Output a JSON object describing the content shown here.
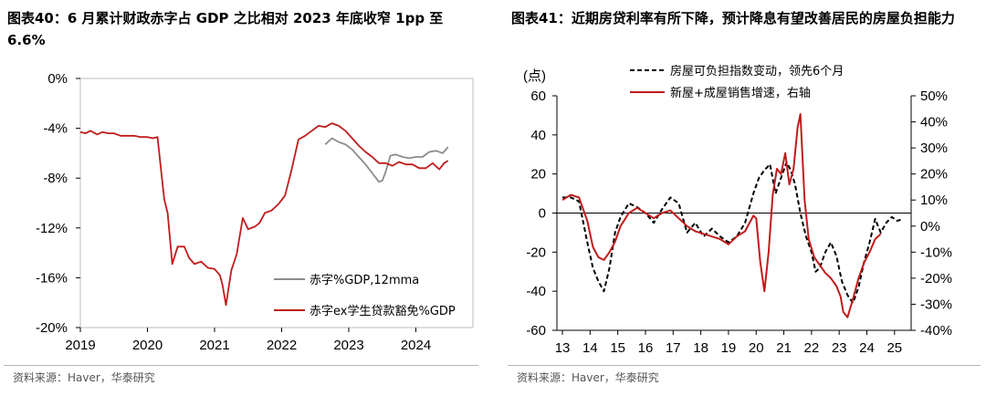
{
  "left": {
    "title": "图表40：6 月累计财政赤字占 GDP 之比相对 2023 年底收窄 1pp 至6.6%",
    "source": "资料来源：Haver，华泰研究",
    "chart_data": {
      "type": "line",
      "y_ticks": [
        "0%",
        "-4%",
        "-8%",
        "-12%",
        "-16%",
        "-20%"
      ],
      "x_ticks": [
        "2019",
        "2020",
        "2021",
        "2022",
        "2023",
        "2024"
      ],
      "ylim": [
        -20,
        0
      ],
      "xlim": [
        2019.0,
        2024.85
      ],
      "grid": false,
      "legend_position": "bottom-right",
      "series": [
        {
          "name": "赤字%GDP,12mma",
          "color": "#8c8c8c",
          "x": [
            2022.65,
            2022.75,
            2022.85,
            2022.95,
            2023.05,
            2023.15,
            2023.25,
            2023.35,
            2023.45,
            2023.5,
            2023.55,
            2023.62,
            2023.7,
            2023.8,
            2023.9,
            2024.0,
            2024.1,
            2024.2,
            2024.3,
            2024.4,
            2024.48
          ],
          "y": [
            -5.3,
            -4.8,
            -5.1,
            -5.3,
            -5.7,
            -6.3,
            -6.9,
            -7.6,
            -8.3,
            -8.2,
            -7.5,
            -6.2,
            -6.1,
            -6.3,
            -6.4,
            -6.3,
            -6.3,
            -5.9,
            -5.8,
            -6.0,
            -5.5
          ]
        },
        {
          "name": "赤字ex学生贷款豁免%GDP",
          "color": "#c01c1c",
          "x": [
            2019.0,
            2019.08,
            2019.15,
            2019.25,
            2019.33,
            2019.42,
            2019.5,
            2019.6,
            2019.7,
            2019.8,
            2019.9,
            2020.0,
            2020.08,
            2020.15,
            2020.25,
            2020.3,
            2020.37,
            2020.45,
            2020.55,
            2020.62,
            2020.7,
            2020.8,
            2020.9,
            2021.0,
            2021.08,
            2021.12,
            2021.17,
            2021.25,
            2021.33,
            2021.42,
            2021.5,
            2021.6,
            2021.67,
            2021.75,
            2021.85,
            2021.95,
            2022.05,
            2022.15,
            2022.25,
            2022.35,
            2022.45,
            2022.55,
            2022.65,
            2022.75,
            2022.85,
            2022.95,
            2023.05,
            2023.15,
            2023.25,
            2023.35,
            2023.45,
            2023.55,
            2023.65,
            2023.75,
            2023.85,
            2023.95,
            2024.05,
            2024.15,
            2024.25,
            2024.35,
            2024.42,
            2024.48
          ],
          "y": [
            -4.3,
            -4.4,
            -4.2,
            -4.5,
            -4.3,
            -4.4,
            -4.4,
            -4.6,
            -4.6,
            -4.6,
            -4.7,
            -4.7,
            -4.8,
            -4.7,
            -9.7,
            -10.8,
            -14.9,
            -13.5,
            -13.5,
            -14.4,
            -14.9,
            -14.7,
            -15.2,
            -15.3,
            -15.8,
            -16.6,
            -18.2,
            -15.4,
            -14.1,
            -11.2,
            -12.1,
            -11.9,
            -11.6,
            -10.8,
            -10.6,
            -10.1,
            -9.4,
            -7.3,
            -4.9,
            -4.6,
            -4.2,
            -3.8,
            -3.9,
            -3.6,
            -3.8,
            -4.2,
            -4.8,
            -5.4,
            -5.9,
            -6.3,
            -6.8,
            -6.8,
            -7.0,
            -6.7,
            -6.9,
            -6.9,
            -7.2,
            -7.2,
            -6.8,
            -7.3,
            -6.8,
            -6.6
          ]
        }
      ]
    }
  },
  "right": {
    "title": "图表41：近期房贷利率有所下降，预计降息有望改善居民的房屋负担能力",
    "source": "资料来源：Haver，华泰研究",
    "chart_data": {
      "type": "line",
      "left_unit": "(点)",
      "y_left_ticks": [
        "60",
        "40",
        "20",
        "0",
        "-20",
        "-40",
        "-60"
      ],
      "y_right_ticks": [
        "50%",
        "40%",
        "30%",
        "20%",
        "10%",
        "0%",
        "-10%",
        "-20%",
        "-30%",
        "-40%"
      ],
      "x_ticks": [
        "13",
        "14",
        "15",
        "16",
        "17",
        "18",
        "19",
        "20",
        "21",
        "22",
        "23",
        "24",
        "25"
      ],
      "ylim_left": [
        -60,
        60
      ],
      "ylim_right": [
        -40,
        50
      ],
      "xlim": [
        2012.8,
        2025.6
      ],
      "grid": false,
      "legend_position": "top",
      "series": [
        {
          "name": "房屋可负担指数变动，领先6个月",
          "axis": "left",
          "style": "dashed",
          "color": "#000000",
          "x": [
            2013.0,
            2013.3,
            2013.6,
            2013.9,
            2014.1,
            2014.3,
            2014.5,
            2014.7,
            2014.9,
            2015.1,
            2015.4,
            2015.7,
            2016.0,
            2016.3,
            2016.6,
            2016.9,
            2017.2,
            2017.5,
            2017.8,
            2018.1,
            2018.4,
            2018.7,
            2019.0,
            2019.3,
            2019.6,
            2019.9,
            2020.1,
            2020.3,
            2020.5,
            2020.7,
            2020.9,
            2021.1,
            2021.25,
            2021.4,
            2021.6,
            2021.8,
            2022.0,
            2022.15,
            2022.3,
            2022.5,
            2022.7,
            2022.9,
            2023.1,
            2023.3,
            2023.5,
            2023.7,
            2023.9,
            2024.1,
            2024.3,
            2024.5,
            2024.7,
            2024.9,
            2025.1,
            2025.3
          ],
          "y": [
            8,
            8,
            6,
            -15,
            -28,
            -35,
            -40,
            -28,
            -10,
            -2,
            5,
            3,
            0,
            -5,
            2,
            8,
            5,
            -10,
            -5,
            -12,
            -8,
            -12,
            -15,
            -12,
            -5,
            10,
            18,
            22,
            25,
            10,
            18,
            26,
            22,
            15,
            0,
            -12,
            -20,
            -30,
            -28,
            -20,
            -15,
            -22,
            -35,
            -42,
            -46,
            -38,
            -25,
            -15,
            -3,
            -10,
            -5,
            -2,
            -4,
            -3
          ]
        },
        {
          "name": "新屋+成屋销售增速，右轴",
          "axis": "right",
          "style": "solid",
          "color": "#c01c1c",
          "x": [
            2013.0,
            2013.3,
            2013.6,
            2013.9,
            2014.1,
            2014.3,
            2014.5,
            2014.7,
            2014.9,
            2015.1,
            2015.4,
            2015.7,
            2016.0,
            2016.3,
            2016.6,
            2016.9,
            2017.2,
            2017.5,
            2017.8,
            2018.1,
            2018.4,
            2018.7,
            2019.0,
            2019.3,
            2019.6,
            2019.9,
            2020.0,
            2020.15,
            2020.3,
            2020.45,
            2020.6,
            2020.75,
            2020.9,
            2021.05,
            2021.2,
            2021.35,
            2021.5,
            2021.6,
            2021.75,
            2021.9,
            2022.1,
            2022.3,
            2022.5,
            2022.7,
            2022.9,
            2023.05,
            2023.15,
            2023.3,
            2023.5,
            2023.7,
            2023.9,
            2024.1,
            2024.3,
            2024.5
          ],
          "y": [
            10,
            12,
            11,
            2,
            -8,
            -12,
            -13,
            -10,
            -6,
            0,
            5,
            7,
            5,
            3,
            5,
            6,
            3,
            0,
            -2,
            -3,
            -4,
            -5,
            -7,
            -4,
            -2,
            4,
            3,
            -14,
            -25,
            -10,
            12,
            22,
            20,
            28,
            16,
            22,
            38,
            43,
            10,
            -5,
            -12,
            -15,
            -18,
            -20,
            -23,
            -27,
            -33,
            -35,
            -28,
            -20,
            -14,
            -10,
            -5,
            -3
          ]
        }
      ]
    }
  }
}
